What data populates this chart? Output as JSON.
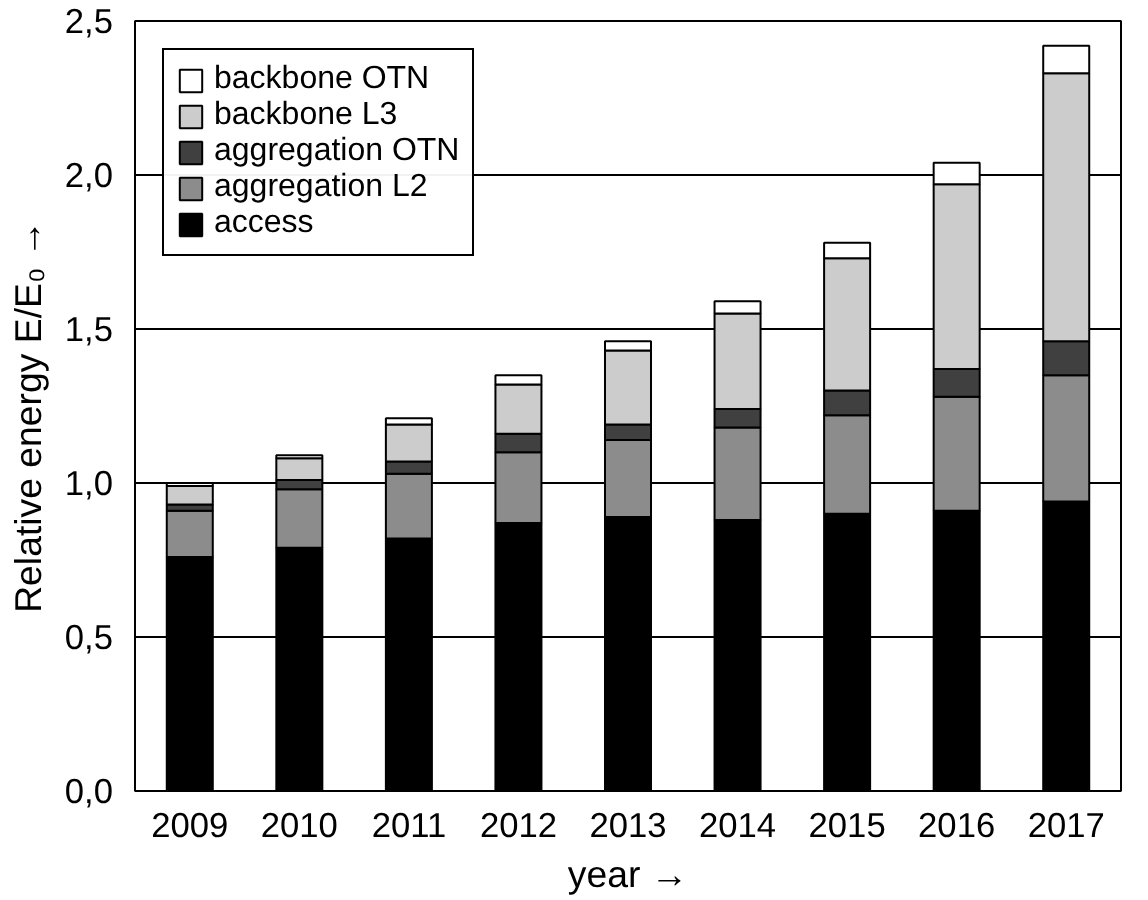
{
  "chart_data": {
    "type": "bar",
    "stacked": true,
    "xlabel": "year →",
    "ylabel": "Relative energy  E/E₀  →",
    "categories": [
      "2009",
      "2010",
      "2011",
      "2012",
      "2013",
      "2014",
      "2015",
      "2016",
      "2017"
    ],
    "series": [
      {
        "name": "access",
        "color": "#000000",
        "values": [
          0.76,
          0.79,
          0.82,
          0.87,
          0.89,
          0.88,
          0.9,
          0.91,
          0.94
        ]
      },
      {
        "name": "aggregation L2",
        "color": "#8c8c8c",
        "values": [
          0.15,
          0.19,
          0.21,
          0.23,
          0.25,
          0.3,
          0.32,
          0.37,
          0.41
        ]
      },
      {
        "name": "aggregation OTN",
        "color": "#404040",
        "values": [
          0.02,
          0.03,
          0.04,
          0.06,
          0.05,
          0.06,
          0.08,
          0.09,
          0.11
        ]
      },
      {
        "name": "backbone L3",
        "color": "#cccccc",
        "values": [
          0.06,
          0.07,
          0.12,
          0.16,
          0.24,
          0.31,
          0.43,
          0.6,
          0.87
        ]
      },
      {
        "name": "backbone OTN",
        "color": "#ffffff",
        "values": [
          0.01,
          0.01,
          0.02,
          0.03,
          0.03,
          0.04,
          0.05,
          0.07,
          0.09
        ]
      }
    ],
    "ylim": [
      0,
      2.5
    ],
    "yticks": [
      {
        "value": 0,
        "label": "0,0"
      },
      {
        "value": 0.5,
        "label": "0,5"
      },
      {
        "value": 1,
        "label": "1,0"
      },
      {
        "value": 1.5,
        "label": "1,5"
      },
      {
        "value": 2,
        "label": "2,0"
      },
      {
        "value": 2.5,
        "label": "2,5"
      }
    ],
    "grid": "y",
    "legend": "top left"
  }
}
